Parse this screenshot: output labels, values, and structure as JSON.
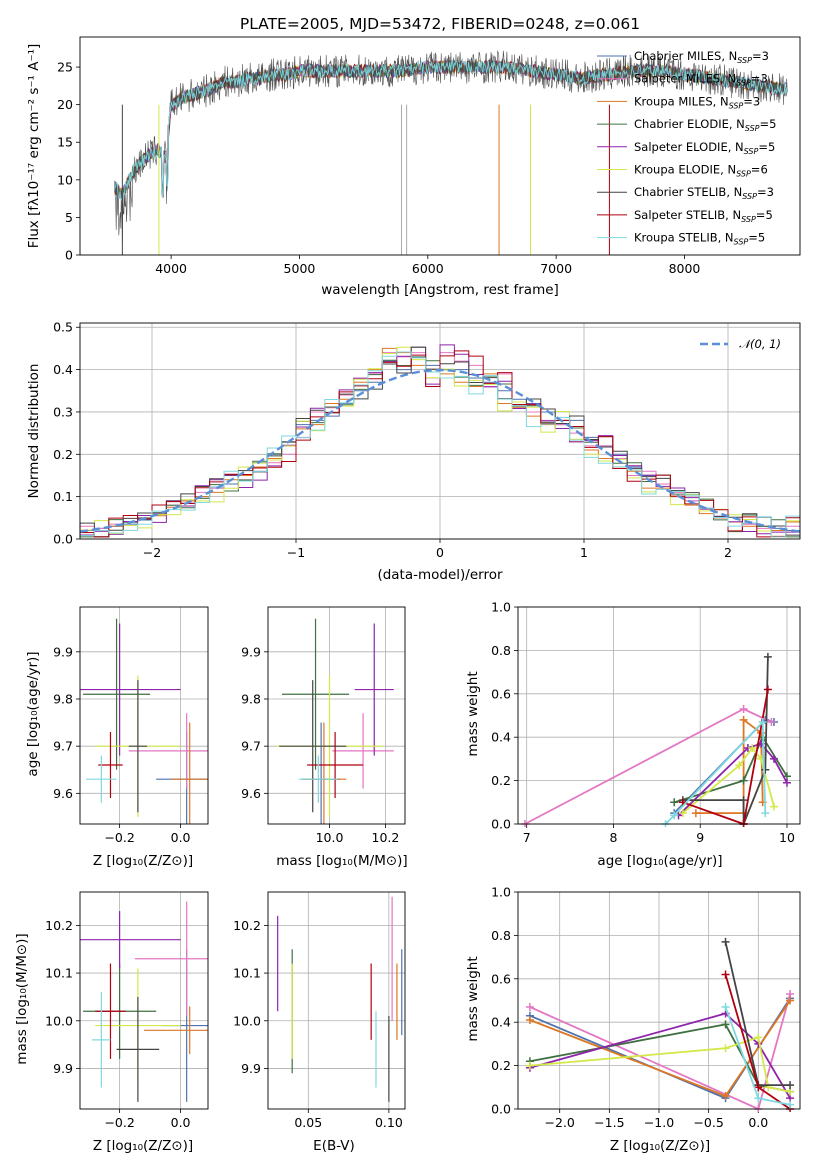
{
  "title": "PLATE=2005, MJD=53472, FIBERID=0248, z=0.061",
  "models": [
    {
      "name": "Chabrier MILES",
      "nssp": "3",
      "color": "#4c72b0"
    },
    {
      "name": "Salpeter MILES",
      "nssp": "3",
      "color": "#e377c2"
    },
    {
      "name": "Kroupa MILES",
      "nssp": "3",
      "color": "#dd7722"
    },
    {
      "name": "Chabrier ELODIE",
      "nssp": "5",
      "color": "#3f7040"
    },
    {
      "name": "Salpeter ELODIE",
      "nssp": "5",
      "color": "#8e24aa"
    },
    {
      "name": "Kroupa ELODIE",
      "nssp": "6",
      "color": "#d4e84a"
    },
    {
      "name": "Chabrier STELIB",
      "nssp": "3",
      "color": "#444444"
    },
    {
      "name": "Salpeter STELIB",
      "nssp": "5",
      "color": "#b00010"
    },
    {
      "name": "Kroupa STELIB",
      "nssp": "5",
      "color": "#80d8e0"
    }
  ],
  "panels": {
    "spectrum": {
      "xlabel": "wavelength [Angstrom, rest frame]",
      "ylabel": "Flux [fλ10⁻¹⁷ erg cm⁻² s⁻¹ A⁻¹]",
      "xticks": [
        "4000",
        "5000",
        "6000",
        "7000",
        "8000"
      ],
      "yticks": [
        "0",
        "5",
        "10",
        "15",
        "20",
        "25"
      ]
    },
    "residuals": {
      "xlabel": "(data-model)/error",
      "ylabel": "Normed distribution",
      "xticks": [
        "−2",
        "−1",
        "0",
        "1",
        "2"
      ],
      "yticks": [
        "0.0",
        "0.1",
        "0.2",
        "0.3",
        "0.4",
        "0.5"
      ],
      "legend": "𝒩(0, 1)"
    },
    "z_age": {
      "xlabel": "Z [log₁₀(Z/Z⊙)]",
      "ylabel": "age  [log₁₀(age/yr)]",
      "xticks": [
        "−0.2",
        "0.0"
      ],
      "yticks": [
        "9.6",
        "9.7",
        "9.8",
        "9.9"
      ]
    },
    "mass_age": {
      "xlabel": "mass [log₁₀(M/M⊙)]",
      "xticks": [
        "10.0",
        "10.2"
      ],
      "yticks": [
        "9.6",
        "9.7",
        "9.8",
        "9.9"
      ]
    },
    "age_weight": {
      "xlabel": "age  [log₁₀(age/yr)]",
      "ylabel": "mass weight",
      "xticks": [
        "7",
        "8",
        "9",
        "10"
      ],
      "yticks": [
        "0.0",
        "0.2",
        "0.4",
        "0.6",
        "0.8",
        "1.0"
      ]
    },
    "z_mass": {
      "xlabel": "Z [log₁₀(Z/Z⊙)]",
      "ylabel": "mass [log₁₀(M/M⊙)]",
      "xticks": [
        "−0.2",
        "0.0"
      ],
      "yticks": [
        "9.9",
        "10.0",
        "10.1",
        "10.2"
      ]
    },
    "ebv_mass": {
      "xlabel": "E(B-V)",
      "xticks": [
        "0.05",
        "0.10"
      ],
      "yticks": [
        "9.9",
        "10.0",
        "10.1",
        "10.2"
      ]
    },
    "z_weight": {
      "xlabel": "Z [log₁₀(Z/Z⊙)]",
      "ylabel": "mass weight",
      "xticks": [
        "−2.0",
        "−1.5",
        "−1.0",
        "−0.5",
        "0.0"
      ],
      "yticks": [
        "0.0",
        "0.2",
        "0.4",
        "0.6",
        "0.8",
        "1.0"
      ]
    }
  },
  "chart_data": [
    {
      "type": "line",
      "title": "PLATE=2005, MJD=53472, FIBERID=0248, z=0.061",
      "xlabel": "wavelength [Angstrom, rest frame]",
      "ylabel": "Flux [fλ10⁻¹⁷ erg cm⁻² s⁻¹ A⁻¹]",
      "xlim": [
        3290,
        8900
      ],
      "ylim": [
        0,
        29
      ],
      "grid": false,
      "legend": "top-right",
      "continuum": {
        "x": [
          3560,
          3620,
          3700,
          3800,
          3900,
          3960,
          4000,
          4100,
          4200,
          4300,
          4400,
          4500,
          4600,
          4700,
          4800,
          4900,
          5000,
          5200,
          5400,
          5600,
          5800,
          6000,
          6200,
          6400,
          6600,
          6800,
          7000,
          7200,
          7400,
          7600,
          7800,
          8000,
          8200,
          8400,
          8600,
          8800
        ],
        "y": [
          9,
          8,
          11,
          13,
          14,
          13,
          20,
          21,
          21.5,
          22,
          23,
          23,
          23.5,
          23.5,
          24,
          24,
          24.5,
          24.5,
          24.5,
          24.5,
          24.5,
          25,
          25,
          25,
          25,
          24.5,
          24,
          23.5,
          24,
          24.5,
          24.5,
          24,
          23.5,
          23,
          22.5,
          22
        ]
      }
    },
    {
      "type": "line",
      "xlabel": "(data-model)/error",
      "ylabel": "Normed distribution",
      "xlim": [
        -2.5,
        2.5
      ],
      "ylim": [
        0,
        0.51
      ],
      "grid": true,
      "legend": "top-right",
      "bin_edges": [
        -2.5,
        -2.4,
        -2.3,
        -2.2,
        -2.1,
        -2.0,
        -1.9,
        -1.8,
        -1.7,
        -1.6,
        -1.5,
        -1.4,
        -1.3,
        -1.2,
        -1.1,
        -1.0,
        -0.9,
        -0.8,
        -0.7,
        -0.6,
        -0.5,
        -0.4,
        -0.3,
        -0.2,
        -0.1,
        0.0,
        0.1,
        0.2,
        0.3,
        0.4,
        0.5,
        0.6,
        0.7,
        0.8,
        0.9,
        1.0,
        1.1,
        1.2,
        1.3,
        1.4,
        1.5,
        1.6,
        1.7,
        1.8,
        1.9,
        2.0,
        2.1,
        2.2,
        2.3,
        2.4,
        2.5
      ],
      "series": [
        {
          "values": [
            0.02,
            0.025,
            0.03,
            0.035,
            0.045,
            0.06,
            0.07,
            0.09,
            0.1,
            0.12,
            0.13,
            0.15,
            0.18,
            0.2,
            0.22,
            0.27,
            0.28,
            0.29,
            0.32,
            0.35,
            0.37,
            0.42,
            0.4,
            0.43,
            0.41,
            0.4,
            0.4,
            0.38,
            0.37,
            0.35,
            0.33,
            0.32,
            0.3,
            0.27,
            0.28,
            0.24,
            0.22,
            0.2,
            0.17,
            0.15,
            0.13,
            0.1,
            0.09,
            0.07,
            0.05,
            0.04,
            0.035,
            0.03,
            0.025,
            0.02
          ]
        },
        {
          "values": [
            0.03,
            0.025,
            0.035,
            0.04,
            0.05,
            0.06,
            0.08,
            0.085,
            0.11,
            0.12,
            0.15,
            0.14,
            0.16,
            0.18,
            0.2,
            0.24,
            0.3,
            0.31,
            0.34,
            0.38,
            0.39,
            0.44,
            0.43,
            0.44,
            0.38,
            0.44,
            0.42,
            0.41,
            0.36,
            0.39,
            0.31,
            0.3,
            0.28,
            0.27,
            0.25,
            0.22,
            0.22,
            0.19,
            0.15,
            0.16,
            0.13,
            0.11,
            0.09,
            0.07,
            0.05,
            0.04,
            0.035,
            0.025,
            0.02,
            0.03
          ]
        },
        {
          "values": [
            0.015,
            0.02,
            0.03,
            0.04,
            0.05,
            0.055,
            0.075,
            0.09,
            0.1,
            0.11,
            0.14,
            0.15,
            0.17,
            0.19,
            0.22,
            0.26,
            0.27,
            0.32,
            0.33,
            0.37,
            0.4,
            0.45,
            0.44,
            0.41,
            0.4,
            0.39,
            0.37,
            0.36,
            0.39,
            0.32,
            0.31,
            0.29,
            0.27,
            0.28,
            0.23,
            0.21,
            0.19,
            0.17,
            0.16,
            0.12,
            0.12,
            0.1,
            0.08,
            0.06,
            0.05,
            0.04,
            0.03,
            0.03,
            0.02,
            0.04
          ]
        }
      ]
    },
    {
      "type": "scatter",
      "xlabel": "Z [log₁₀(Z/Z⊙)]",
      "ylabel": "age  [log₁₀(age/yr)]",
      "xlim": [
        -0.33,
        0.09
      ],
      "ylim": [
        9.535,
        9.995
      ],
      "grid": true,
      "points": [
        {
          "x": 0.02,
          "y": 9.63,
          "xerr": 0.1,
          "yerr": 0.1
        },
        {
          "x": 0.02,
          "y": 9.69,
          "xerr": 0.19,
          "yerr": 0.08
        },
        {
          "x": 0.03,
          "y": 9.63,
          "xerr": 0.06,
          "yerr": 0.12
        },
        {
          "x": -0.21,
          "y": 9.81,
          "xerr": 0.11,
          "yerr": 0.16
        },
        {
          "x": -0.2,
          "y": 9.82,
          "xerr": 0.2,
          "yerr": 0.14
        },
        {
          "x": -0.14,
          "y": 9.7,
          "xerr": 0.14,
          "yerr": 0.15
        },
        {
          "x": -0.14,
          "y": 9.7,
          "xerr": 0.03,
          "yerr": 0.14
        },
        {
          "x": -0.23,
          "y": 9.66,
          "xerr": 0.04,
          "yerr": 0.07
        },
        {
          "x": -0.26,
          "y": 9.63,
          "xerr": 0.05,
          "yerr": 0.05
        }
      ]
    },
    {
      "type": "scatter",
      "xlabel": "mass [log₁₀(M/M⊙)]",
      "xlim": [
        9.78,
        10.27
      ],
      "ylim": [
        9.535,
        9.995
      ],
      "grid": true,
      "points": [
        {
          "x": 9.97,
          "y": 9.63,
          "xerr": 0.07,
          "yerr": 0.12
        },
        {
          "x": 10.12,
          "y": 9.69,
          "xerr": 0.11,
          "yerr": 0.08
        },
        {
          "x": 9.98,
          "y": 9.63,
          "xerr": 0.08,
          "yerr": 0.12
        },
        {
          "x": 9.95,
          "y": 9.81,
          "xerr": 0.12,
          "yerr": 0.16
        },
        {
          "x": 10.16,
          "y": 9.82,
          "xerr": 0.07,
          "yerr": 0.14
        },
        {
          "x": 10.0,
          "y": 9.7,
          "xerr": 0.19,
          "yerr": 0.15
        },
        {
          "x": 9.94,
          "y": 9.7,
          "xerr": 0.12,
          "yerr": 0.14
        },
        {
          "x": 10.02,
          "y": 9.66,
          "xerr": 0.1,
          "yerr": 0.07
        },
        {
          "x": 9.96,
          "y": 9.63,
          "xerr": 0.07,
          "yerr": 0.05
        }
      ]
    },
    {
      "type": "line",
      "xlabel": "age  [log₁₀(age/yr)]",
      "ylabel": "mass weight",
      "xlim": [
        6.9,
        10.15
      ],
      "ylim": [
        0,
        1
      ],
      "grid": true,
      "series": [
        {
          "x": [
            8.7,
            9.75,
            9.85
          ],
          "y": [
            0.05,
            0.48,
            0.47
          ]
        },
        {
          "x": [
            6.98,
            9.5,
            9.82
          ],
          "y": [
            0.0,
            0.53,
            0.47
          ]
        },
        {
          "x": [
            8.95,
            9.5,
            9.5,
            9.7,
            9.72
          ],
          "y": [
            0.05,
            0.05,
            0.48,
            0.42,
            0.1
          ]
        },
        {
          "x": [
            8.7,
            9.5,
            9.72,
            10.0
          ],
          "y": [
            0.1,
            0.2,
            0.4,
            0.22
          ]
        },
        {
          "x": [
            8.75,
            9.55,
            9.7,
            9.85,
            10.0
          ],
          "y": [
            0.04,
            0.35,
            0.37,
            0.3,
            0.19
          ]
        },
        {
          "x": [
            8.8,
            9.45,
            9.6,
            9.7,
            9.85
          ],
          "y": [
            0.05,
            0.27,
            0.35,
            0.3,
            0.08
          ]
        },
        {
          "x": [
            8.8,
            9.5,
            9.5,
            9.75,
            9.78
          ],
          "y": [
            0.11,
            0.11,
            0.0,
            0.25,
            0.77
          ]
        },
        {
          "x": [
            8.8,
            9.5,
            9.78
          ],
          "y": [
            0.1,
            0.0,
            0.62
          ]
        },
        {
          "x": [
            8.6,
            8.7,
            9.72,
            9.75
          ],
          "y": [
            0.0,
            0.04,
            0.47,
            0.05
          ]
        }
      ]
    },
    {
      "type": "scatter",
      "xlabel": "Z [log₁₀(Z/Z⊙)]",
      "ylabel": "mass [log₁₀(M/M⊙)]",
      "xlim": [
        -0.33,
        0.09
      ],
      "ylim": [
        9.815,
        10.27
      ],
      "grid": true,
      "points": [
        {
          "x": 0.02,
          "y": 9.99,
          "xerr": 0.08,
          "yerr": 0.16
        },
        {
          "x": 0.02,
          "y": 10.13,
          "xerr": 0.17,
          "yerr": 0.12
        },
        {
          "x": 0.03,
          "y": 9.98,
          "xerr": 0.15,
          "yerr": 0.05
        },
        {
          "x": -0.2,
          "y": 10.02,
          "xerr": 0.12,
          "yerr": 0.1
        },
        {
          "x": -0.2,
          "y": 10.17,
          "xerr": 0.2,
          "yerr": 0.06
        },
        {
          "x": -0.14,
          "y": 9.99,
          "xerr": 0.14,
          "yerr": 0.12
        },
        {
          "x": -0.14,
          "y": 9.94,
          "xerr": 0.07,
          "yerr": 0.11
        },
        {
          "x": -0.23,
          "y": 10.02,
          "xerr": 0.05,
          "yerr": 0.1
        },
        {
          "x": -0.26,
          "y": 9.96,
          "xerr": 0.03,
          "yerr": 0.1
        }
      ]
    },
    {
      "type": "scatter",
      "xlabel": "E(B-V)",
      "xlim": [
        0.025,
        0.11
      ],
      "ylim": [
        9.815,
        10.27
      ],
      "grid": true,
      "points": [
        {
          "x": 0.108,
          "y": 10.06,
          "yerr": 0.09
        },
        {
          "x": 0.102,
          "y": 10.13,
          "yerr": 0.13
        },
        {
          "x": 0.105,
          "y": 10.04,
          "yerr": 0.08
        },
        {
          "x": 0.04,
          "y": 10.02,
          "yerr": 0.13
        },
        {
          "x": 0.031,
          "y": 10.12,
          "yerr": 0.1
        },
        {
          "x": 0.04,
          "y": 10.02,
          "yerr": 0.1
        },
        {
          "x": 0.1,
          "y": 9.92,
          "yerr": 0.09
        },
        {
          "x": 0.089,
          "y": 10.04,
          "yerr": 0.08
        },
        {
          "x": 0.092,
          "y": 9.94,
          "yerr": 0.08
        }
      ]
    },
    {
      "type": "line",
      "xlabel": "Z [log₁₀(Z/Z⊙)]",
      "ylabel": "mass weight",
      "xlim": [
        -2.42,
        0.42
      ],
      "ylim": [
        0,
        1
      ],
      "grid": true,
      "series": [
        {
          "x": [
            -2.3,
            -0.33,
            0.32
          ],
          "y": [
            0.43,
            0.05,
            0.51
          ]
        },
        {
          "x": [
            -2.3,
            0.0,
            0.32
          ],
          "y": [
            0.47,
            0.0,
            0.53
          ]
        },
        {
          "x": [
            -2.3,
            -0.33,
            0.32
          ],
          "y": [
            0.41,
            0.06,
            0.5
          ]
        },
        {
          "x": [
            -2.3,
            -0.33,
            0.0,
            0.32
          ],
          "y": [
            0.22,
            0.39,
            0.11,
            0.08
          ]
        },
        {
          "x": [
            -2.3,
            -0.33,
            0.0,
            0.32
          ],
          "y": [
            0.19,
            0.44,
            0.3,
            0.05
          ]
        },
        {
          "x": [
            -2.3,
            -0.33,
            0.0,
            0.1,
            0.32
          ],
          "y": [
            0.2,
            0.28,
            0.33,
            0.1,
            0.08
          ]
        },
        {
          "x": [
            -0.33,
            0.0,
            0.32
          ],
          "y": [
            0.77,
            0.11,
            0.11
          ]
        },
        {
          "x": [
            -0.33,
            0.0,
            0.32
          ],
          "y": [
            0.62,
            0.1,
            0.0
          ]
        },
        {
          "x": [
            -0.33,
            0.0,
            0.32
          ],
          "y": [
            0.47,
            0.05,
            0.02
          ]
        }
      ]
    }
  ]
}
